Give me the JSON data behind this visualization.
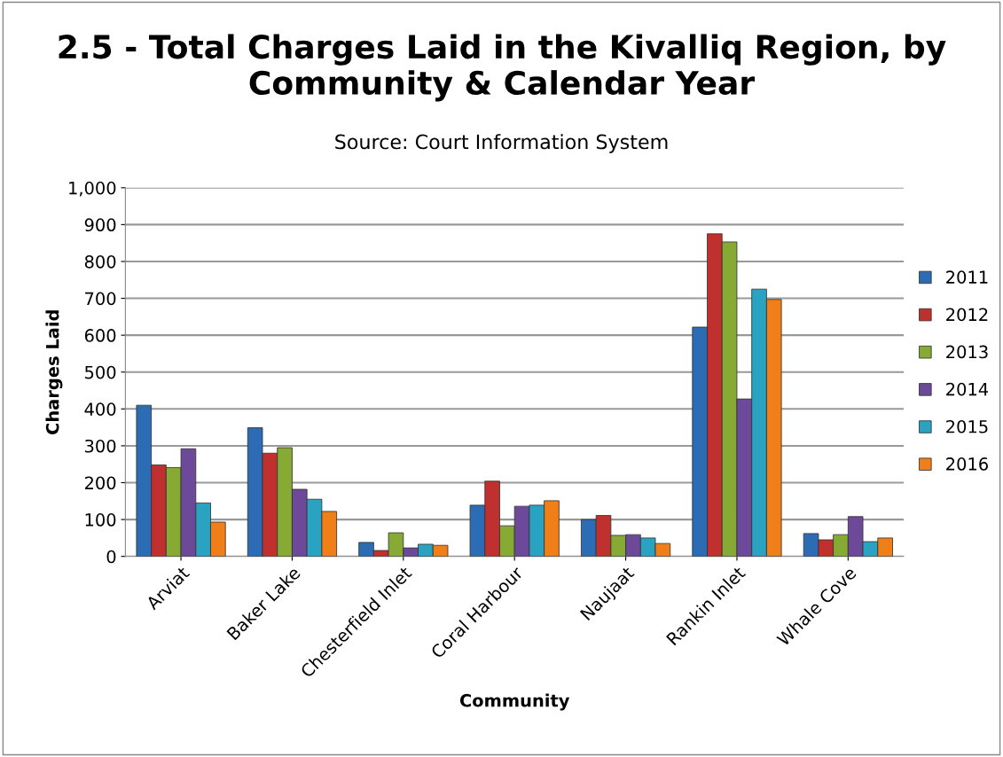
{
  "chart_data": {
    "type": "bar",
    "title": "2.5 - Total Charges Laid in the Kivalliq Region, by Community & Calendar Year",
    "subtitle": "Source: Court Information System",
    "xlabel": "Community",
    "ylabel": "Charges Laid",
    "categories": [
      "Arviat",
      "Baker Lake",
      "Chesterfield Inlet",
      "Coral Harbour",
      "Naujaat",
      "Rankin Inlet",
      "Whale Cove"
    ],
    "series": [
      {
        "name": "2011",
        "color": "#2c6cb4",
        "values": [
          410,
          349,
          38,
          139,
          100,
          622,
          62
        ]
      },
      {
        "name": "2012",
        "color": "#c0302e",
        "values": [
          248,
          280,
          16,
          204,
          111,
          875,
          45
        ]
      },
      {
        "name": "2013",
        "color": "#86aa34",
        "values": [
          241,
          295,
          64,
          83,
          57,
          853,
          59
        ]
      },
      {
        "name": "2014",
        "color": "#6d4a99",
        "values": [
          292,
          182,
          23,
          136,
          59,
          427,
          108
        ]
      },
      {
        "name": "2015",
        "color": "#2aa3c2",
        "values": [
          145,
          155,
          33,
          139,
          50,
          725,
          40
        ]
      },
      {
        "name": "2016",
        "color": "#f07f1a",
        "values": [
          93,
          122,
          30,
          151,
          35,
          697,
          50
        ]
      }
    ],
    "ylim": [
      0,
      1000
    ],
    "yticks": [
      0,
      100,
      200,
      300,
      400,
      500,
      600,
      700,
      800,
      900,
      {
        "value": 1000,
        "label": "1,000"
      }
    ],
    "grid": "y",
    "legend": "right"
  }
}
